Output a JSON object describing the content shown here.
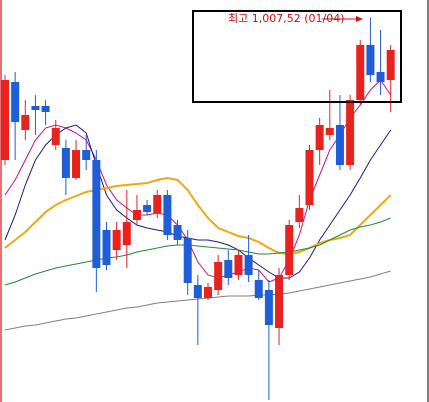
{
  "chart_data": {
    "type": "candlestick",
    "annotation": "최고 1,007,52 (01/04)",
    "ylim": [
      623,
      1025
    ],
    "up_color": "#e8231d",
    "down_color": "#1f5ed8",
    "annotation_color": "#d01010",
    "open": [
      865,
      943,
      895,
      919,
      919,
      880,
      877,
      847,
      875,
      865,
      795,
      775,
      780,
      805,
      820,
      812,
      830,
      800,
      787,
      740,
      727,
      735,
      765,
      750,
      770,
      745,
      735,
      697,
      750,
      803,
      820,
      875,
      890,
      900,
      860,
      925,
      980,
      953,
      945
    ],
    "high": [
      950,
      953,
      925,
      930,
      925,
      905,
      885,
      885,
      890,
      875,
      803,
      803,
      835,
      830,
      825,
      835,
      835,
      805,
      795,
      750,
      742,
      770,
      775,
      775,
      790,
      755,
      745,
      757,
      805,
      830,
      880,
      907,
      935,
      930,
      930,
      985,
      1007.52,
      995,
      980
    ],
    "low": [
      860,
      865,
      885,
      890,
      900,
      875,
      830,
      845,
      855,
      733,
      755,
      765,
      757,
      800,
      810,
      807,
      785,
      780,
      730,
      680,
      725,
      730,
      740,
      745,
      743,
      725,
      625,
      680,
      745,
      797,
      815,
      860,
      885,
      855,
      855,
      920,
      943,
      930,
      913
    ],
    "close": [
      945,
      903,
      910,
      915,
      913,
      897,
      847,
      875,
      865,
      757,
      760,
      795,
      803,
      815,
      813,
      830,
      790,
      785,
      742,
      727,
      738,
      763,
      747,
      770,
      750,
      727,
      700,
      750,
      800,
      817,
      875,
      900,
      897,
      860,
      925,
      980,
      950,
      943,
      975
    ],
    "moving_averages": [
      {
        "color": "#c8148c",
        "values": [
          830,
          845,
          865,
          885,
          897,
          900,
          897,
          892,
          885,
          865,
          840,
          825,
          817,
          810,
          810,
          812,
          810,
          800,
          785,
          763,
          750,
          747,
          750,
          753,
          757,
          755,
          743,
          747,
          765,
          790,
          825,
          850,
          875,
          890,
          907,
          920,
          935,
          945,
          930
        ]
      },
      {
        "color": "#1a1a8a",
        "values": [
          785,
          810,
          840,
          865,
          880,
          890,
          897,
          900,
          892,
          860,
          830,
          815,
          807,
          800,
          797,
          795,
          793,
          789,
          787,
          785,
          785,
          783,
          780,
          775,
          767,
          760,
          753,
          747,
          747,
          753,
          767,
          785,
          800,
          815,
          830,
          847,
          865,
          880,
          895
        ]
      },
      {
        "color": "#f0a810",
        "values": [
          777,
          785,
          793,
          803,
          813,
          820,
          825,
          829,
          833,
          835,
          837,
          839,
          840,
          841,
          842,
          845,
          847,
          845,
          835,
          820,
          807,
          797,
          793,
          789,
          787,
          783,
          777,
          772,
          771,
          773,
          777,
          782,
          785,
          787,
          790,
          800,
          810,
          820,
          830
        ]
      },
      {
        "color": "#1e8a3c",
        "values": [
          740,
          743,
          747,
          751,
          754,
          757,
          759,
          761,
          763,
          765,
          767,
          768,
          770,
          773,
          775,
          777,
          779,
          780,
          780,
          779,
          778,
          777,
          776,
          775,
          773,
          771,
          771,
          772,
          773,
          775,
          777,
          780,
          785,
          790,
          795,
          798,
          800,
          803,
          807
        ]
      },
      {
        "color": "#808080",
        "values": [
          695,
          697,
          699,
          700,
          702,
          704,
          706,
          707,
          709,
          711,
          713,
          715,
          717,
          718,
          720,
          722,
          723,
          724,
          725,
          726,
          727,
          728,
          729,
          729,
          729,
          730,
          730,
          731,
          732,
          734,
          736,
          738,
          740,
          742,
          744,
          746,
          748,
          751,
          754
        ]
      }
    ]
  }
}
